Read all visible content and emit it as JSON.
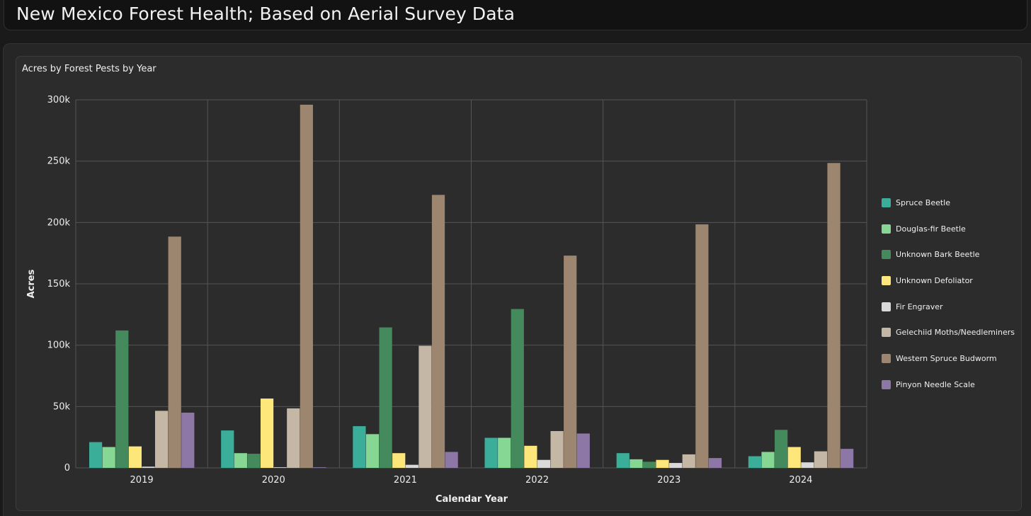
{
  "header": {
    "title": "New Mexico Forest Health; Based on Aerial Survey Data"
  },
  "chart_data": {
    "type": "bar",
    "title": "Acres by Forest Pests by Year",
    "xlabel": "Calendar Year",
    "ylabel": "Acres",
    "ylim": [
      0,
      300000
    ],
    "yticks": [
      0,
      50000,
      100000,
      150000,
      200000,
      250000,
      300000
    ],
    "ytick_labels": [
      "0",
      "50k",
      "100k",
      "150k",
      "200k",
      "250k",
      "300k"
    ],
    "grid": true,
    "legend_position": "right",
    "categories": [
      "2019",
      "2020",
      "2021",
      "2022",
      "2023",
      "2024"
    ],
    "series": [
      {
        "name": "Spruce Beetle",
        "color": "#3aae99",
        "values": [
          21000,
          30500,
          34000,
          24500,
          12000,
          9500
        ]
      },
      {
        "name": "Douglas-fir Beetle",
        "color": "#86d794",
        "values": [
          17000,
          12000,
          27500,
          24500,
          7000,
          13000
        ]
      },
      {
        "name": "Unknown Bark Beetle",
        "color": "#448a5c",
        "values": [
          112000,
          11500,
          114500,
          129500,
          5000,
          31000
        ]
      },
      {
        "name": "Unknown Defoliator",
        "color": "#fde67a",
        "values": [
          17500,
          56500,
          12000,
          18000,
          6500,
          17000
        ]
      },
      {
        "name": "Fir Engraver",
        "color": "#d9d9d9",
        "values": [
          1000,
          500,
          2500,
          6500,
          4000,
          4500
        ]
      },
      {
        "name": "Gelechiid Moths/Needleminers",
        "color": "#c5b7a6",
        "values": [
          46500,
          48500,
          99500,
          30000,
          11000,
          13500
        ]
      },
      {
        "name": "Western Spruce Budworm",
        "color": "#9d8670",
        "values": [
          188500,
          296000,
          222500,
          173000,
          198500,
          248500
        ]
      },
      {
        "name": "Pinyon Needle Scale",
        "color": "#8d77a6",
        "values": [
          45000,
          500,
          13000,
          28000,
          8000,
          15500
        ]
      }
    ]
  }
}
